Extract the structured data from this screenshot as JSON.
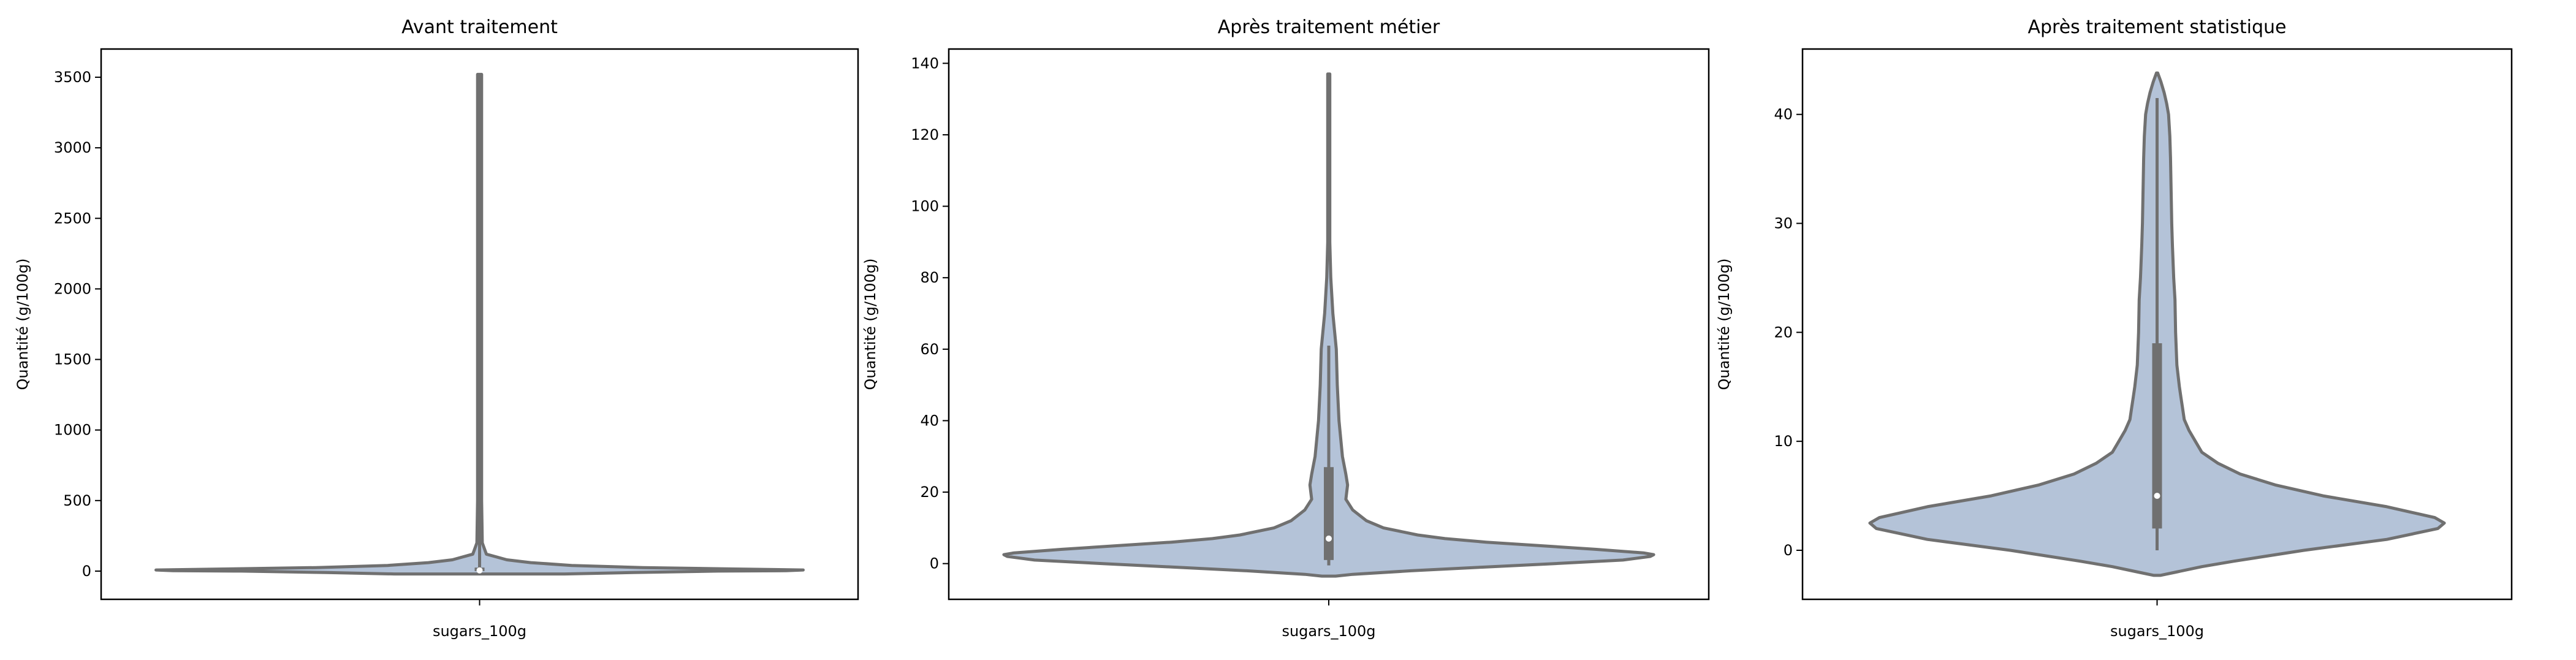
{
  "chart_data": [
    {
      "type": "violin",
      "title": "Avant traitement",
      "xlabel": "",
      "ylabel": "Quantité (g/100g)",
      "categories": [
        "sugars_100g"
      ],
      "yticks": [
        0,
        500,
        1000,
        1500,
        2000,
        2500,
        3000,
        3500
      ],
      "ylim": [
        -200,
        3700
      ],
      "violin": {
        "y": [
          -20,
          -10,
          0,
          3,
          8,
          15,
          25,
          40,
          60,
          80,
          100,
          120,
          200,
          500,
          1000,
          2000,
          3000,
          3520
        ],
        "hw": [
          0.25,
          0.45,
          0.7,
          0.9,
          0.95,
          0.75,
          0.48,
          0.27,
          0.15,
          0.08,
          0.05,
          0.02,
          0.008,
          0.006,
          0.006,
          0.006,
          0.006,
          0.006
        ]
      },
      "box": {
        "q1": 0,
        "median": 5,
        "q3": 25,
        "whisker_low": -20,
        "whisker_high": 3520
      },
      "fill": "#b4c3d8",
      "edge": "#707070"
    },
    {
      "type": "violin",
      "title": "Après traitement métier",
      "xlabel": "",
      "ylabel": "Quantité (g/100g)",
      "categories": [
        "sugars_100g"
      ],
      "yticks": [
        0,
        20,
        40,
        60,
        80,
        100,
        120,
        140
      ],
      "ylim": [
        -10,
        144
      ],
      "violin": {
        "y": [
          -3.5,
          -3,
          -2,
          -1,
          0,
          1,
          2,
          2.5,
          3,
          4,
          5,
          6,
          7,
          8,
          10,
          12,
          15,
          18,
          22,
          25,
          30,
          35,
          40,
          50,
          60,
          70,
          80,
          90,
          110,
          137
        ],
        "hw": [
          0.02,
          0.07,
          0.24,
          0.45,
          0.66,
          0.86,
          0.94,
          0.95,
          0.92,
          0.78,
          0.62,
          0.46,
          0.34,
          0.26,
          0.16,
          0.11,
          0.07,
          0.05,
          0.055,
          0.05,
          0.04,
          0.035,
          0.03,
          0.025,
          0.022,
          0.012,
          0.006,
          0.003,
          0.003,
          0.003
        ]
      },
      "box": {
        "q1": 1,
        "median": 7,
        "q3": 27,
        "whisker_low": -0.5,
        "whisker_high": 61
      },
      "fill": "#b4c3d8",
      "edge": "#707070"
    },
    {
      "type": "violin",
      "title": "Après traitement statistique",
      "xlabel": "",
      "ylabel": "Quantité (g/100g)",
      "categories": [
        "sugars_100g"
      ],
      "yticks": [
        0,
        10,
        20,
        30,
        40
      ],
      "ylim": [
        -4.5,
        46
      ],
      "violin": {
        "y": [
          -2.3,
          -2,
          -1.5,
          -1,
          0,
          1,
          2,
          2.5,
          3,
          4,
          5,
          6,
          7,
          8,
          9,
          10,
          11,
          12,
          13,
          14,
          15,
          17,
          20,
          23,
          25,
          28,
          30,
          33,
          36,
          38,
          40,
          41,
          42,
          43,
          43.8
        ],
        "hw": [
          0.01,
          0.06,
          0.14,
          0.24,
          0.46,
          0.72,
          0.88,
          0.9,
          0.87,
          0.72,
          0.52,
          0.37,
          0.26,
          0.19,
          0.14,
          0.12,
          0.1,
          0.085,
          0.08,
          0.075,
          0.07,
          0.062,
          0.058,
          0.056,
          0.052,
          0.048,
          0.046,
          0.044,
          0.042,
          0.04,
          0.036,
          0.03,
          0.022,
          0.012,
          0.002
        ]
      },
      "box": {
        "q1": 2,
        "median": 5,
        "q3": 19,
        "whisker_low": 0,
        "whisker_high": 41.5
      },
      "fill": "#b4c3d8",
      "edge": "#707070"
    }
  ]
}
